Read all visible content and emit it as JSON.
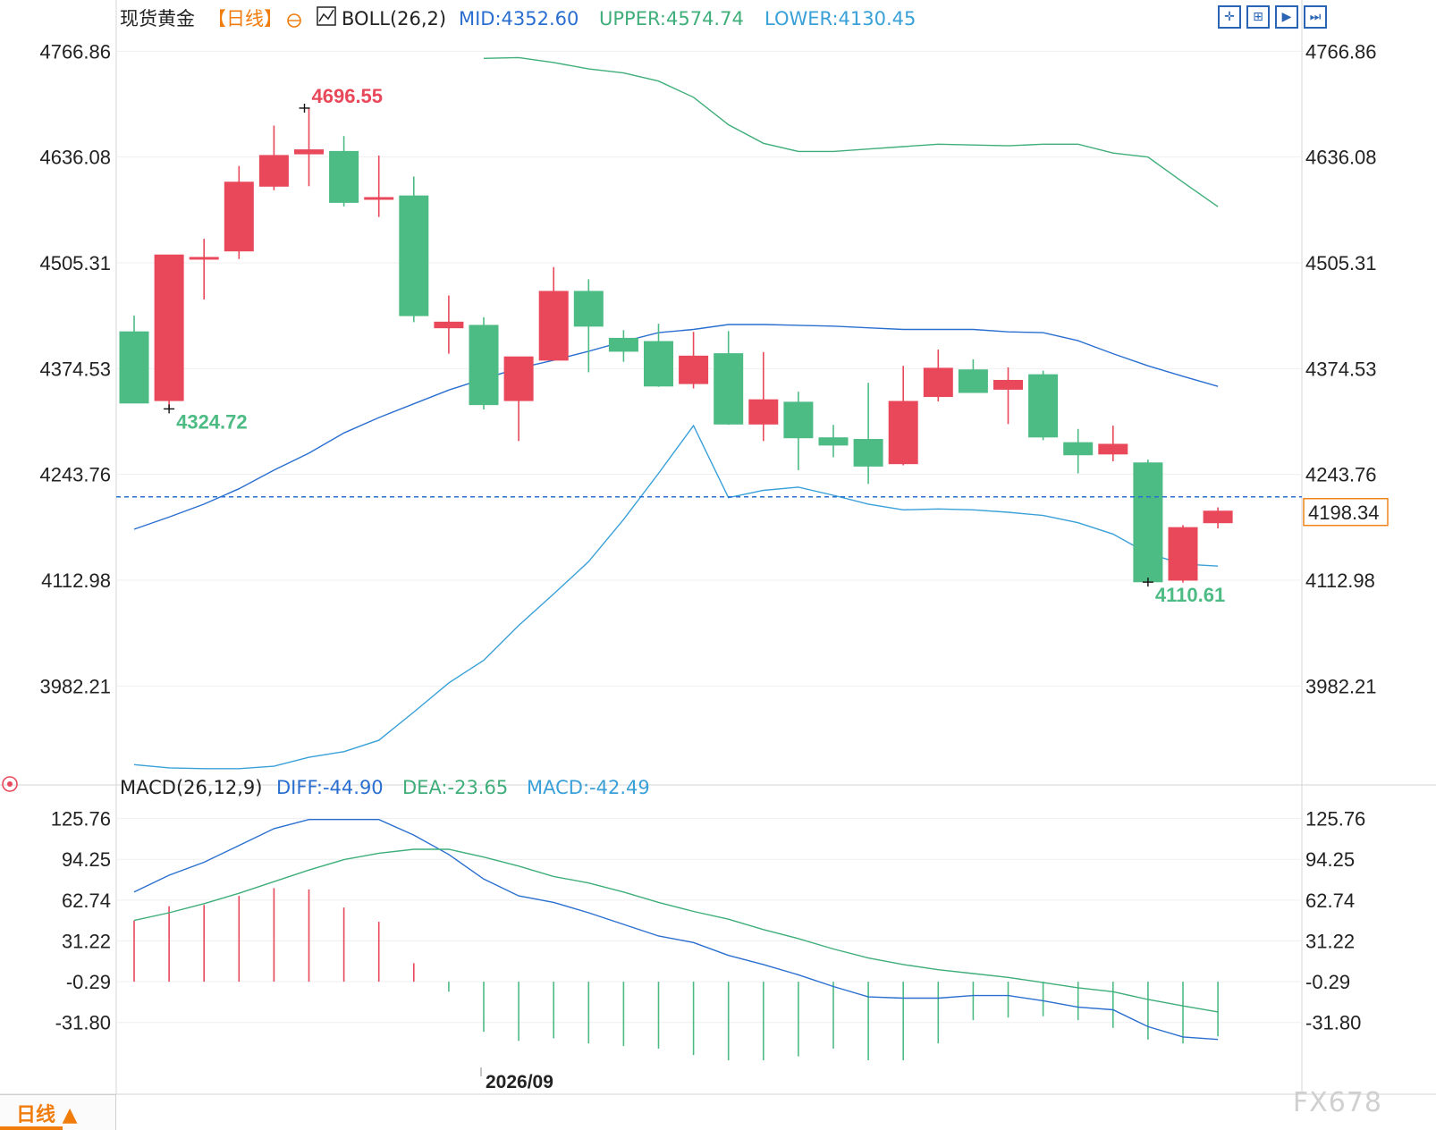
{
  "header": {
    "instrument": "现货黄金",
    "period_tag": "【日线】",
    "indicator": "BOLL(26,2)",
    "mid": "MID:4352.60",
    "upper": "UPPER:4574.74",
    "lower": "LOWER:4130.45"
  },
  "macd_header": {
    "indicator": "MACD(26,12,9)",
    "diff": "DIFF:-44.90",
    "dea": "DEA:-23.65",
    "macd": "MACD:-42.49"
  },
  "period_tab": {
    "label": "日线 ▲"
  },
  "watermark": "FX678",
  "date_label": "2026/09",
  "current_price": "4198.34",
  "colors": {
    "up": "#e8485a",
    "down": "#4dbb84",
    "upper": "#3fae7a",
    "mid": "#2a6fd0",
    "lower": "#39a0d8",
    "diff": "#2a6fd0",
    "dea": "#3fae7a",
    "accent": "#f07c0c"
  },
  "chart_data": [
    {
      "type": "candlestick",
      "y_ticks": [
        "4766.86",
        "4636.08",
        "4505.31",
        "4374.53",
        "4243.76",
        "4112.98",
        "3982.21"
      ],
      "ylim": [
        3882,
        4786
      ],
      "annotations": [
        {
          "text": "4696.55",
          "bar": 5,
          "price": 4696.55,
          "kind": "high"
        },
        {
          "text": "4324.72",
          "bar": 1,
          "price": 4324.72,
          "kind": "low"
        },
        {
          "text": "4110.61",
          "bar": 29,
          "price": 4110.61,
          "kind": "low"
        }
      ],
      "candles": [
        {
          "o": 4420,
          "h": 4440,
          "l": 4332,
          "c": 4332
        },
        {
          "o": 4335,
          "h": 4515,
          "l": 4324.72,
          "c": 4515
        },
        {
          "o": 4510,
          "h": 4535,
          "l": 4460,
          "c": 4512
        },
        {
          "o": 4520,
          "h": 4625,
          "l": 4510,
          "c": 4605
        },
        {
          "o": 4600,
          "h": 4675,
          "l": 4595,
          "c": 4638
        },
        {
          "o": 4640,
          "h": 4696.55,
          "l": 4600,
          "c": 4645
        },
        {
          "o": 4643,
          "h": 4662,
          "l": 4575,
          "c": 4580
        },
        {
          "o": 4585,
          "h": 4638,
          "l": 4562,
          "c": 4586
        },
        {
          "o": 4588,
          "h": 4612,
          "l": 4432,
          "c": 4440
        },
        {
          "o": 4425,
          "h": 4465,
          "l": 4393,
          "c": 4432
        },
        {
          "o": 4428,
          "h": 4438,
          "l": 4324,
          "c": 4330
        },
        {
          "o": 4335,
          "h": 4385,
          "l": 4285,
          "c": 4389
        },
        {
          "o": 4385,
          "h": 4500,
          "l": 4385,
          "c": 4470
        },
        {
          "o": 4470,
          "h": 4485,
          "l": 4370,
          "c": 4427
        },
        {
          "o": 4412,
          "h": 4422,
          "l": 4383,
          "c": 4396
        },
        {
          "o": 4408,
          "h": 4430,
          "l": 4352,
          "c": 4353
        },
        {
          "o": 4356,
          "h": 4420,
          "l": 4350,
          "c": 4390
        },
        {
          "o": 4393,
          "h": 4421,
          "l": 4305,
          "c": 4306
        },
        {
          "o": 4306,
          "h": 4395,
          "l": 4285,
          "c": 4336
        },
        {
          "o": 4333,
          "h": 4346,
          "l": 4249,
          "c": 4289
        },
        {
          "o": 4289,
          "h": 4305,
          "l": 4265,
          "c": 4280
        },
        {
          "o": 4287,
          "h": 4357,
          "l": 4232,
          "c": 4254
        },
        {
          "o": 4257,
          "h": 4378,
          "l": 4255,
          "c": 4334
        },
        {
          "o": 4340,
          "h": 4398,
          "l": 4334,
          "c": 4375
        },
        {
          "o": 4373,
          "h": 4386,
          "l": 4345,
          "c": 4345
        },
        {
          "o": 4349,
          "h": 4376,
          "l": 4306,
          "c": 4360
        },
        {
          "o": 4367,
          "h": 4372,
          "l": 4286,
          "c": 4290
        },
        {
          "o": 4283,
          "h": 4300,
          "l": 4245,
          "c": 4268
        },
        {
          "o": 4269,
          "h": 4304,
          "l": 4260,
          "c": 4281
        },
        {
          "o": 4258,
          "h": 4262,
          "l": 4110.61,
          "c": 4111
        },
        {
          "o": 4113,
          "h": 4181,
          "l": 4110,
          "c": 4178
        },
        {
          "o": 4184,
          "h": 4203,
          "l": 4177,
          "c": 4198.34
        }
      ],
      "series": [
        {
          "name": "UPPER",
          "values": [
            null,
            null,
            null,
            null,
            null,
            null,
            null,
            null,
            null,
            null,
            4758,
            4759,
            4753,
            4745,
            4740,
            4730,
            4710,
            4676,
            4653,
            4643,
            4643,
            4646,
            4649,
            4652,
            4651,
            4650,
            4652,
            4652,
            4641,
            4636,
            4605,
            4574.74
          ]
        },
        {
          "name": "MID",
          "values": [
            4176,
            4191,
            4207,
            4226,
            4249,
            4270,
            4295,
            4314,
            4331,
            4348,
            4362,
            4375,
            4385,
            4396,
            4408,
            4419,
            4423,
            4429,
            4429,
            4428,
            4427,
            4425,
            4423,
            4423,
            4423,
            4420,
            4419,
            4409,
            4393,
            4378,
            4365,
            4352.6
          ]
        },
        {
          "name": "LOWER",
          "values": [
            3885,
            3881,
            3880,
            3880,
            3883,
            3894,
            3901,
            3915,
            3950,
            3986,
            4014,
            4057,
            4096,
            4136,
            4188,
            4245,
            4304,
            4215,
            4224,
            4228,
            4218,
            4207,
            4200,
            4201,
            4200,
            4197,
            4193,
            4184,
            4170,
            4146,
            4133,
            4130.45
          ]
        }
      ]
    },
    {
      "type": "macd",
      "y_ticks": [
        "125.76",
        "94.25",
        "62.74",
        "31.22",
        "-0.29",
        "-31.80"
      ],
      "ylim": [
        -61,
        140
      ],
      "series": [
        {
          "name": "DIFF",
          "values": [
            69,
            82,
            92,
            105,
            118,
            125,
            125,
            125,
            113,
            98,
            79,
            66,
            61,
            53,
            44,
            35,
            30,
            20,
            13,
            5,
            -4,
            -12,
            -13,
            -13,
            -11,
            -11,
            -15,
            -20,
            -22,
            -35,
            -43,
            -44.9
          ]
        },
        {
          "name": "DEA",
          "values": [
            47,
            53,
            60,
            68,
            77,
            86,
            94,
            99,
            102,
            102,
            96,
            89,
            81,
            76,
            69,
            61,
            54,
            48,
            40,
            33,
            25,
            18,
            13,
            9,
            6,
            3,
            -1,
            -5,
            -8,
            -14,
            -19,
            -23.65
          ]
        },
        {
          "name": "MACD",
          "values": [
            47,
            58,
            59,
            66,
            72,
            71,
            57,
            46,
            14,
            -8,
            -39,
            -46,
            -44,
            -48,
            -50,
            -52,
            -57,
            -61,
            -61,
            -58,
            -52,
            -61,
            -61,
            -48,
            -30,
            -28,
            -27,
            -30,
            -36,
            -45,
            -48,
            -42.49
          ]
        }
      ]
    }
  ]
}
